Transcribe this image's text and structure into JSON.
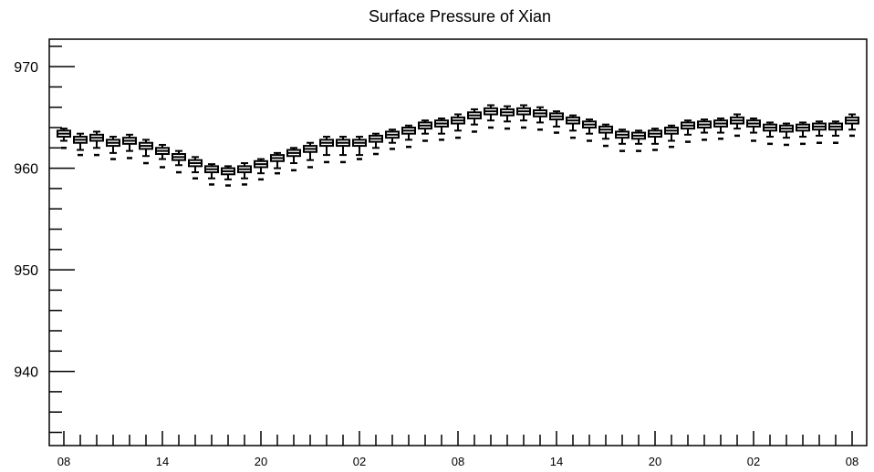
{
  "chart_data": {
    "type": "box",
    "title": "Surface Pressure of Xian",
    "xlabel": "",
    "ylabel": "",
    "ylim": [
      932.7,
      972.7
    ],
    "y_major_ticks": [
      940,
      950,
      960,
      970
    ],
    "x_tick_labels": [
      "08",
      "14",
      "20",
      "02",
      "08",
      "14",
      "20",
      "02",
      "08"
    ],
    "x_tick_interval_steps": 6,
    "grid": false,
    "legend": "none",
    "colors": {
      "stroke": "#000000",
      "background": "#ffffff"
    },
    "series": [
      {
        "medians": [
          963.4,
          962.8,
          963.0,
          962.5,
          962.7,
          962.2,
          961.7,
          961.1,
          960.5,
          959.9,
          959.7,
          959.9,
          960.4,
          961.0,
          961.5,
          961.9,
          962.5,
          962.5,
          962.5,
          962.9,
          963.3,
          963.7,
          964.2,
          964.4,
          964.7,
          965.2,
          965.6,
          965.5,
          965.6,
          965.4,
          965.1,
          964.7,
          964.3,
          963.8,
          963.3,
          963.2,
          963.4,
          963.7,
          964.2,
          964.3,
          964.4,
          964.7,
          964.4,
          964.0,
          963.9,
          964.0,
          964.1,
          964.1,
          964.7
        ],
        "q1": [
          963.1,
          962.5,
          962.7,
          962.2,
          962.4,
          961.9,
          961.4,
          960.8,
          960.2,
          959.6,
          959.4,
          959.6,
          960.1,
          960.7,
          961.2,
          961.6,
          962.2,
          962.2,
          962.2,
          962.6,
          963.0,
          963.4,
          963.9,
          964.1,
          964.4,
          964.9,
          965.3,
          965.2,
          965.3,
          965.1,
          964.8,
          964.4,
          964.0,
          963.5,
          963.0,
          962.9,
          963.1,
          963.4,
          963.9,
          964.0,
          964.1,
          964.4,
          964.1,
          963.7,
          963.6,
          963.7,
          963.8,
          963.8,
          964.4
        ],
        "q3": [
          963.7,
          963.1,
          963.3,
          962.8,
          963.0,
          962.5,
          962.0,
          961.4,
          960.8,
          960.2,
          960.0,
          960.2,
          960.7,
          961.3,
          961.8,
          962.2,
          962.8,
          962.8,
          962.8,
          963.2,
          963.6,
          964.0,
          964.5,
          964.7,
          965.0,
          965.5,
          965.9,
          965.8,
          965.9,
          965.7,
          965.4,
          965.0,
          964.6,
          964.1,
          963.6,
          963.5,
          963.7,
          964.0,
          964.5,
          964.6,
          964.7,
          965.0,
          964.7,
          964.3,
          964.2,
          964.3,
          964.4,
          964.4,
          965.0
        ],
        "whisker_low": [
          962.7,
          961.8,
          962.0,
          961.5,
          961.7,
          961.2,
          960.9,
          960.3,
          959.6,
          959.0,
          958.9,
          959.0,
          959.5,
          960.0,
          960.5,
          960.8,
          961.3,
          961.3,
          961.3,
          962.0,
          962.5,
          962.8,
          963.4,
          963.4,
          963.7,
          964.3,
          964.7,
          964.6,
          964.7,
          964.5,
          964.1,
          963.7,
          963.4,
          962.9,
          962.4,
          962.4,
          962.4,
          962.7,
          963.3,
          963.5,
          963.5,
          963.9,
          963.5,
          963.1,
          963.0,
          963.1,
          963.2,
          963.2,
          963.8
        ],
        "whisker_high": [
          963.9,
          963.4,
          963.6,
          963.1,
          963.3,
          962.8,
          962.3,
          961.7,
          961.1,
          960.4,
          960.2,
          960.5,
          960.9,
          961.5,
          962.0,
          962.5,
          963.1,
          963.1,
          963.1,
          963.4,
          963.8,
          964.2,
          964.7,
          964.9,
          965.3,
          965.8,
          966.2,
          966.1,
          966.2,
          966.0,
          965.6,
          965.2,
          964.8,
          964.3,
          963.8,
          963.7,
          963.9,
          964.2,
          964.7,
          964.8,
          964.9,
          965.3,
          964.9,
          964.5,
          964.4,
          964.5,
          964.6,
          964.6,
          965.3
        ],
        "outliers": [
          962.0,
          961.3,
          961.3,
          960.9,
          961.0,
          960.5,
          960.1,
          959.6,
          959.0,
          958.4,
          958.3,
          958.4,
          958.9,
          959.5,
          959.8,
          960.1,
          960.6,
          960.6,
          960.9,
          961.4,
          961.9,
          962.1,
          962.7,
          962.8,
          963.0,
          963.6,
          964.0,
          963.9,
          964.0,
          963.8,
          963.5,
          963.0,
          962.7,
          962.2,
          961.7,
          961.7,
          961.8,
          962.1,
          962.6,
          962.8,
          962.9,
          963.2,
          962.7,
          962.4,
          962.3,
          962.4,
          962.5,
          962.5,
          963.2
        ]
      }
    ]
  }
}
